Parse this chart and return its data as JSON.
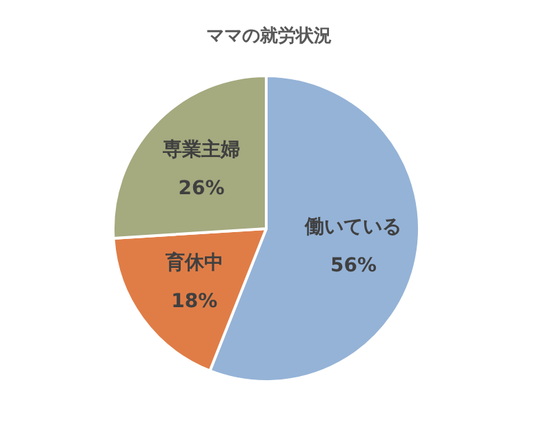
{
  "chart_data": {
    "type": "pie",
    "title": "ママの就労状況",
    "categories": [
      "働いている",
      "育休中",
      "専業主婦"
    ],
    "values": [
      56,
      18,
      26
    ],
    "value_labels": [
      "56%",
      "18%",
      "26%"
    ],
    "colors": [
      "#95b3d7",
      "#e07d47",
      "#a5aa7f"
    ]
  }
}
